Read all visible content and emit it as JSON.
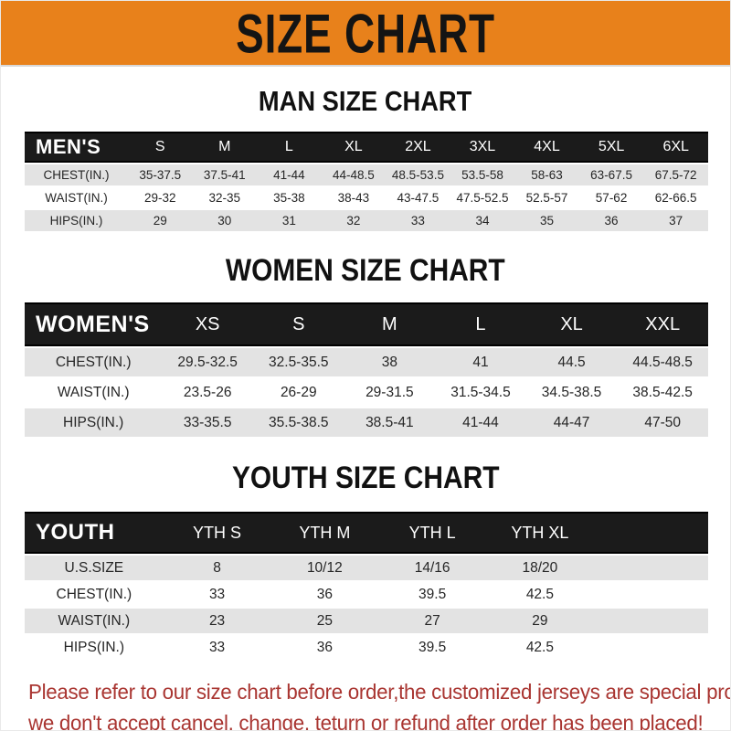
{
  "colors": {
    "orange": "#E8811B",
    "bar": "#1B1B1B",
    "stripe": "#E3E3E3",
    "red": "#A93531"
  },
  "banner": {
    "title": "SIZE CHART"
  },
  "sections": {
    "men": {
      "title": "MAN SIZE CHART",
      "table": {
        "corner": "MEN'S",
        "columns": [
          "S",
          "M",
          "L",
          "XL",
          "2XL",
          "3XL",
          "4XL",
          "5XL",
          "6XL"
        ],
        "rows": [
          {
            "label": "CHEST(IN.)",
            "values": [
              "35-37.5",
              "37.5-41",
              "41-44",
              "44-48.5",
              "48.5-53.5",
              "53.5-58",
              "58-63",
              "63-67.5",
              "67.5-72"
            ]
          },
          {
            "label": "WAIST(IN.)",
            "values": [
              "29-32",
              "32-35",
              "35-38",
              "38-43",
              "43-47.5",
              "47.5-52.5",
              "52.5-57",
              "57-62",
              "62-66.5"
            ]
          },
          {
            "label": "HIPS(IN.)",
            "values": [
              "29",
              "30",
              "31",
              "32",
              "33",
              "34",
              "35",
              "36",
              "37"
            ]
          }
        ]
      }
    },
    "women": {
      "title": "WOMEN SIZE CHART",
      "table": {
        "corner": "WOMEN'S",
        "columns": [
          "XS",
          "S",
          "M",
          "L",
          "XL",
          "XXL"
        ],
        "rows": [
          {
            "label": "CHEST(IN.)",
            "values": [
              "29.5-32.5",
              "32.5-35.5",
              "38",
              "41",
              "44.5",
              "44.5-48.5"
            ]
          },
          {
            "label": "WAIST(IN.)",
            "values": [
              "23.5-26",
              "26-29",
              "29-31.5",
              "31.5-34.5",
              "34.5-38.5",
              "38.5-42.5"
            ]
          },
          {
            "label": "HIPS(IN.)",
            "values": [
              "33-35.5",
              "35.5-38.5",
              "38.5-41",
              "41-44",
              "44-47",
              "47-50"
            ]
          }
        ]
      }
    },
    "youth": {
      "title": "YOUTH SIZE CHART",
      "table": {
        "corner": "YOUTH",
        "columns": [
          "YTH S",
          "YTH M",
          "YTH L",
          "YTH XL"
        ],
        "rows": [
          {
            "label": "U.S.SIZE",
            "values": [
              "8",
              "10/12",
              "14/16",
              "18/20"
            ]
          },
          {
            "label": "CHEST(IN.)",
            "values": [
              "33",
              "36",
              "39.5",
              "42.5"
            ]
          },
          {
            "label": "WAIST(IN.)",
            "values": [
              "23",
              "25",
              "27",
              "29"
            ]
          },
          {
            "label": "HIPS(IN.)",
            "values": [
              "33",
              "36",
              "39.5",
              "42.5"
            ]
          }
        ]
      }
    }
  },
  "footer": {
    "line1": "Please refer to our size chart before order,the customized jerseys are special products,",
    "line2": "we don't accept cancel, change, teturn or refund after order has been placed!"
  }
}
